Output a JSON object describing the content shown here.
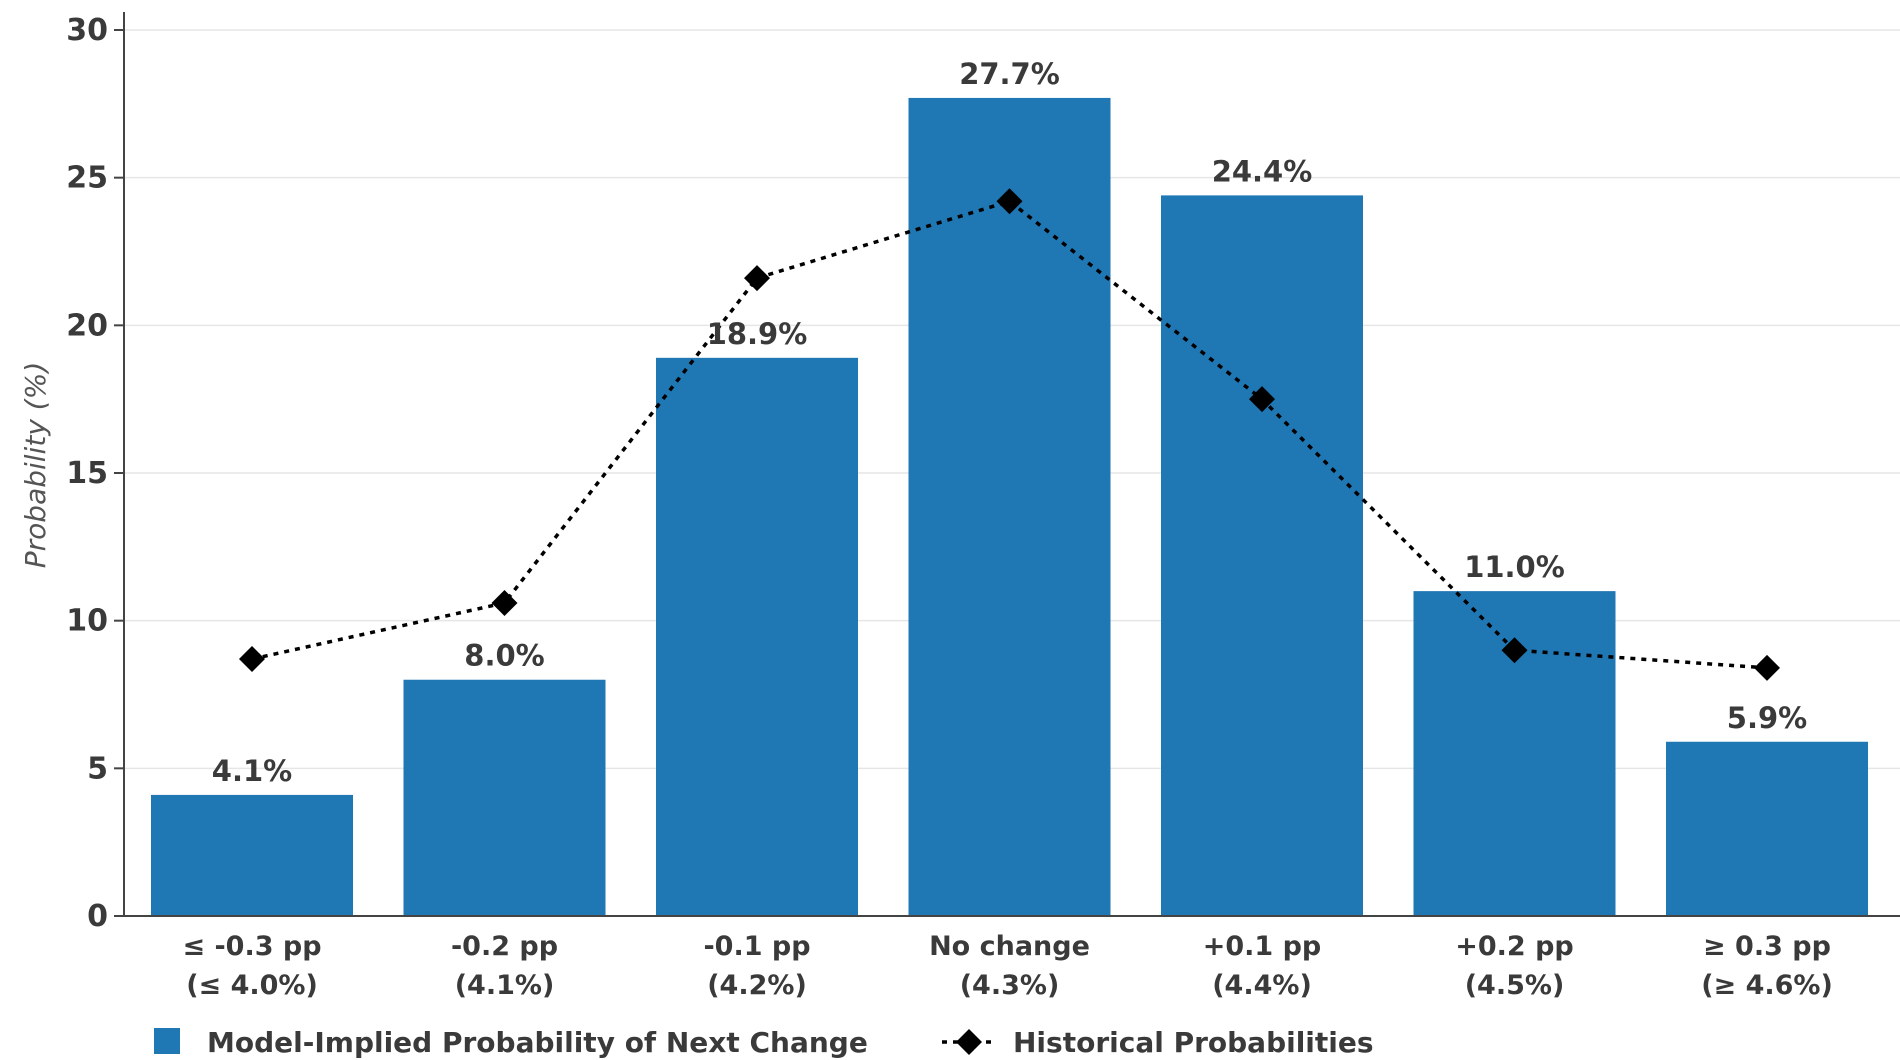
{
  "chart_data": {
    "type": "bar",
    "categories": [
      [
        "≤ -0.3 pp",
        "(≤ 4.0%)"
      ],
      [
        "-0.2 pp",
        "(4.1%)"
      ],
      [
        "-0.1 pp",
        "(4.2%)"
      ],
      [
        "No change",
        "(4.3%)"
      ],
      [
        "+0.1 pp",
        "(4.4%)"
      ],
      [
        "+0.2 pp",
        "(4.5%)"
      ],
      [
        "≥ 0.3 pp",
        "(≥ 4.6%)"
      ]
    ],
    "series": [
      {
        "name": "Model-Implied Probability of Next Change",
        "kind": "bar",
        "color": "#1f77b4",
        "values": [
          4.1,
          8.0,
          18.9,
          27.7,
          24.4,
          11.0,
          5.9
        ],
        "labels": [
          "4.1%",
          "8.0%",
          "18.9%",
          "27.7%",
          "24.4%",
          "11.0%",
          "5.9%"
        ]
      },
      {
        "name": "Historical Probabilities",
        "kind": "line",
        "style": "dotted",
        "marker": "diamond",
        "color": "#000000",
        "values": [
          8.7,
          10.6,
          21.6,
          24.2,
          17.5,
          9.0,
          8.4
        ]
      }
    ],
    "title": "",
    "xlabel": "",
    "ylabel": "Probability (%)",
    "ylim": [
      0,
      30
    ],
    "yticks": [
      0,
      5,
      10,
      15,
      20,
      25,
      30
    ],
    "grid": "horizontal",
    "legend": "bottom-left"
  }
}
